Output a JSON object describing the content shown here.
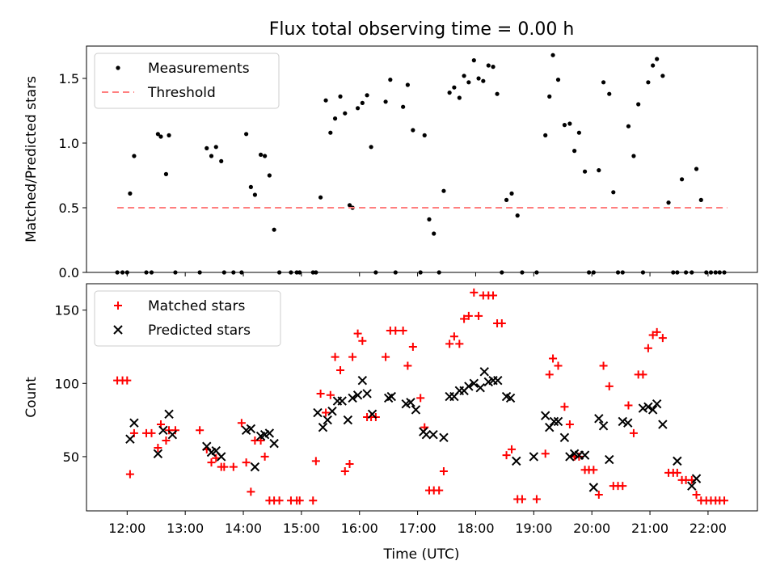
{
  "figure": {
    "title": "Flux total observing time = 0.00 h",
    "xlabel": "Time (UTC)",
    "x_ticks": [
      "12:00",
      "13:00",
      "14:00",
      "15:00",
      "16:00",
      "17:00",
      "18:00",
      "19:00",
      "20:00",
      "21:00",
      "22:00"
    ]
  },
  "chart_data": [
    {
      "type": "scatter",
      "ylabel": "Matched/Predicted stars",
      "xlim": [
        11.3,
        22.85
      ],
      "ylim": [
        0,
        1.75
      ],
      "y_ticks": [
        0.0,
        0.5,
        1.0,
        1.5
      ],
      "legend_position": "upper-left",
      "series": [
        {
          "name": "Measurements",
          "marker": "dot",
          "color": "#000000",
          "x": [
            11.83,
            11.92,
            12.0,
            12.05,
            12.12,
            12.33,
            12.42,
            12.53,
            12.58,
            12.67,
            12.72,
            12.83,
            13.25,
            13.37,
            13.45,
            13.53,
            13.62,
            13.67,
            13.83,
            13.97,
            14.05,
            14.13,
            14.2,
            14.3,
            14.37,
            14.45,
            14.53,
            14.62,
            14.82,
            14.92,
            14.97,
            15.2,
            15.25,
            15.33,
            15.42,
            15.5,
            15.58,
            15.67,
            15.75,
            15.83,
            15.88,
            15.97,
            16.05,
            16.13,
            16.2,
            16.28,
            16.45,
            16.53,
            16.62,
            16.75,
            16.83,
            16.92,
            17.05,
            17.12,
            17.2,
            17.28,
            17.37,
            17.45,
            17.55,
            17.63,
            17.72,
            17.8,
            17.88,
            17.97,
            18.05,
            18.13,
            18.22,
            18.3,
            18.37,
            18.45,
            18.53,
            18.62,
            18.72,
            18.8,
            19.05,
            19.2,
            19.27,
            19.33,
            19.42,
            19.53,
            19.62,
            19.7,
            19.78,
            19.88,
            19.95,
            20.03,
            20.12,
            20.2,
            20.3,
            20.37,
            20.45,
            20.53,
            20.63,
            20.72,
            20.8,
            20.88,
            20.97,
            21.05,
            21.12,
            21.22,
            21.32,
            21.4,
            21.47,
            21.55,
            21.62,
            21.72,
            21.8,
            21.88,
            21.97,
            22.05,
            22.13,
            22.2,
            22.28
          ],
          "y": [
            0,
            0,
            0,
            0.61,
            0.9,
            0,
            0,
            1.07,
            1.05,
            0.76,
            1.06,
            0,
            0,
            0.96,
            0.9,
            0.97,
            0.86,
            0,
            0,
            0,
            1.07,
            0.66,
            0.6,
            0.91,
            0.9,
            0.75,
            0.33,
            0,
            0,
            0,
            0,
            0,
            0,
            0.58,
            1.33,
            1.08,
            1.19,
            1.36,
            1.23,
            0.52,
            0.5,
            1.27,
            1.31,
            1.37,
            0.97,
            0,
            1.32,
            1.49,
            0,
            1.28,
            1.45,
            1.1,
            0,
            1.06,
            0.41,
            0.3,
            0,
            0.63,
            1.39,
            1.43,
            1.35,
            1.52,
            1.47,
            1.64,
            1.5,
            1.48,
            1.6,
            1.59,
            1.38,
            0,
            0.56,
            0.61,
            0.44,
            0,
            0,
            1.06,
            1.36,
            1.68,
            1.49,
            1.14,
            1.15,
            0.94,
            1.08,
            0.78,
            0,
            0,
            0.79,
            1.47,
            1.38,
            0.62,
            0,
            0,
            1.13,
            0.9,
            1.3,
            0,
            1.47,
            1.6,
            1.65,
            1.52,
            0.54,
            0,
            0,
            0.72,
            0,
            0,
            0.8,
            0.56,
            0,
            0,
            0,
            0,
            0
          ]
        },
        {
          "name": "Threshold",
          "marker": "dashed-line",
          "color": "#ff7f7f",
          "x": [
            11.83,
            22.33
          ],
          "y": [
            0.5,
            0.5
          ]
        }
      ]
    },
    {
      "type": "scatter",
      "ylabel": "Count",
      "xlim": [
        11.3,
        22.85
      ],
      "ylim": [
        13,
        168
      ],
      "y_ticks": [
        50,
        100,
        150
      ],
      "legend_position": "upper-left",
      "series": [
        {
          "name": "Matched stars",
          "marker": "plus",
          "color": "#ff0000",
          "x": [
            11.83,
            11.92,
            12.0,
            12.05,
            12.12,
            12.33,
            12.42,
            12.53,
            12.58,
            12.67,
            12.72,
            12.83,
            13.25,
            13.37,
            13.45,
            13.53,
            13.62,
            13.67,
            13.83,
            13.97,
            14.05,
            14.13,
            14.2,
            14.3,
            14.37,
            14.45,
            14.53,
            14.62,
            14.82,
            14.92,
            14.97,
            15.2,
            15.25,
            15.33,
            15.42,
            15.5,
            15.58,
            15.67,
            15.75,
            15.83,
            15.88,
            15.97,
            16.05,
            16.13,
            16.2,
            16.28,
            16.45,
            16.53,
            16.62,
            16.75,
            16.83,
            16.92,
            17.05,
            17.12,
            17.2,
            17.28,
            17.37,
            17.45,
            17.55,
            17.63,
            17.72,
            17.8,
            17.88,
            17.97,
            18.05,
            18.13,
            18.22,
            18.3,
            18.37,
            18.45,
            18.53,
            18.62,
            18.72,
            18.8,
            19.05,
            19.2,
            19.27,
            19.33,
            19.42,
            19.53,
            19.62,
            19.7,
            19.78,
            19.88,
            19.95,
            20.03,
            20.12,
            20.2,
            20.3,
            20.37,
            20.45,
            20.53,
            20.63,
            20.72,
            20.8,
            20.88,
            20.97,
            21.05,
            21.12,
            21.22,
            21.32,
            21.4,
            21.47,
            21.55,
            21.62,
            21.72,
            21.8,
            21.88,
            21.97,
            22.05,
            22.13,
            22.2,
            22.28
          ],
          "y": [
            102,
            102,
            102,
            38,
            66,
            66,
            66,
            56,
            72,
            61,
            68,
            68,
            68,
            55,
            46,
            49,
            43,
            43,
            43,
            73,
            46,
            26,
            61,
            61,
            50,
            20,
            20,
            20,
            20,
            20,
            20,
            20,
            47,
            93,
            80,
            92,
            118,
            109,
            40,
            45,
            118,
            134,
            129,
            77,
            77,
            77,
            118,
            136,
            136,
            136,
            112,
            125,
            90,
            70,
            27,
            27,
            27,
            40,
            127,
            132,
            127,
            144,
            146,
            162,
            146,
            160,
            160,
            160,
            141,
            141,
            51,
            55,
            21,
            21,
            21,
            52,
            106,
            117,
            112,
            84,
            72,
            50,
            50,
            41,
            41,
            41,
            24,
            112,
            98,
            30,
            30,
            30,
            85,
            66,
            106,
            106,
            124,
            133,
            135,
            131,
            39,
            39,
            39,
            34,
            34,
            34,
            24,
            20,
            20,
            20,
            20,
            20,
            20
          ]
        },
        {
          "name": "Predicted stars",
          "marker": "x",
          "color": "#000000",
          "x": [
            12.05,
            12.12,
            12.53,
            12.62,
            12.72,
            12.78,
            13.37,
            13.45,
            13.53,
            13.62,
            14.05,
            14.13,
            14.2,
            14.3,
            14.37,
            14.45,
            14.53,
            15.28,
            15.37,
            15.45,
            15.53,
            15.62,
            15.7,
            15.8,
            15.88,
            15.97,
            16.05,
            16.13,
            16.22,
            16.5,
            16.55,
            16.8,
            16.88,
            16.97,
            17.1,
            17.15,
            17.27,
            17.45,
            17.55,
            17.63,
            17.72,
            17.8,
            17.88,
            17.97,
            18.08,
            18.15,
            18.22,
            18.3,
            18.38,
            18.53,
            18.6,
            18.7,
            19.0,
            19.2,
            19.27,
            19.35,
            19.42,
            19.53,
            19.62,
            19.7,
            19.78,
            19.88,
            20.03,
            20.12,
            20.2,
            20.3,
            20.53,
            20.62,
            20.88,
            20.97,
            21.05,
            21.12,
            21.22,
            21.47,
            21.72,
            21.8
          ],
          "y": [
            62,
            73,
            52,
            68,
            79,
            65,
            57,
            53,
            54,
            50,
            68,
            69,
            43,
            64,
            65,
            66,
            59,
            80,
            70,
            75,
            81,
            88,
            88,
            75,
            90,
            92,
            102,
            93,
            79,
            90,
            91,
            86,
            87,
            82,
            67,
            65,
            65,
            63,
            91,
            91,
            95,
            95,
            98,
            100,
            97,
            108,
            101,
            102,
            102,
            91,
            90,
            47,
            50,
            78,
            70,
            74,
            74,
            63,
            50,
            52,
            51,
            51,
            29,
            76,
            71,
            48,
            74,
            73,
            83,
            84,
            82,
            86,
            72,
            47,
            30,
            35
          ]
        }
      ]
    }
  ]
}
